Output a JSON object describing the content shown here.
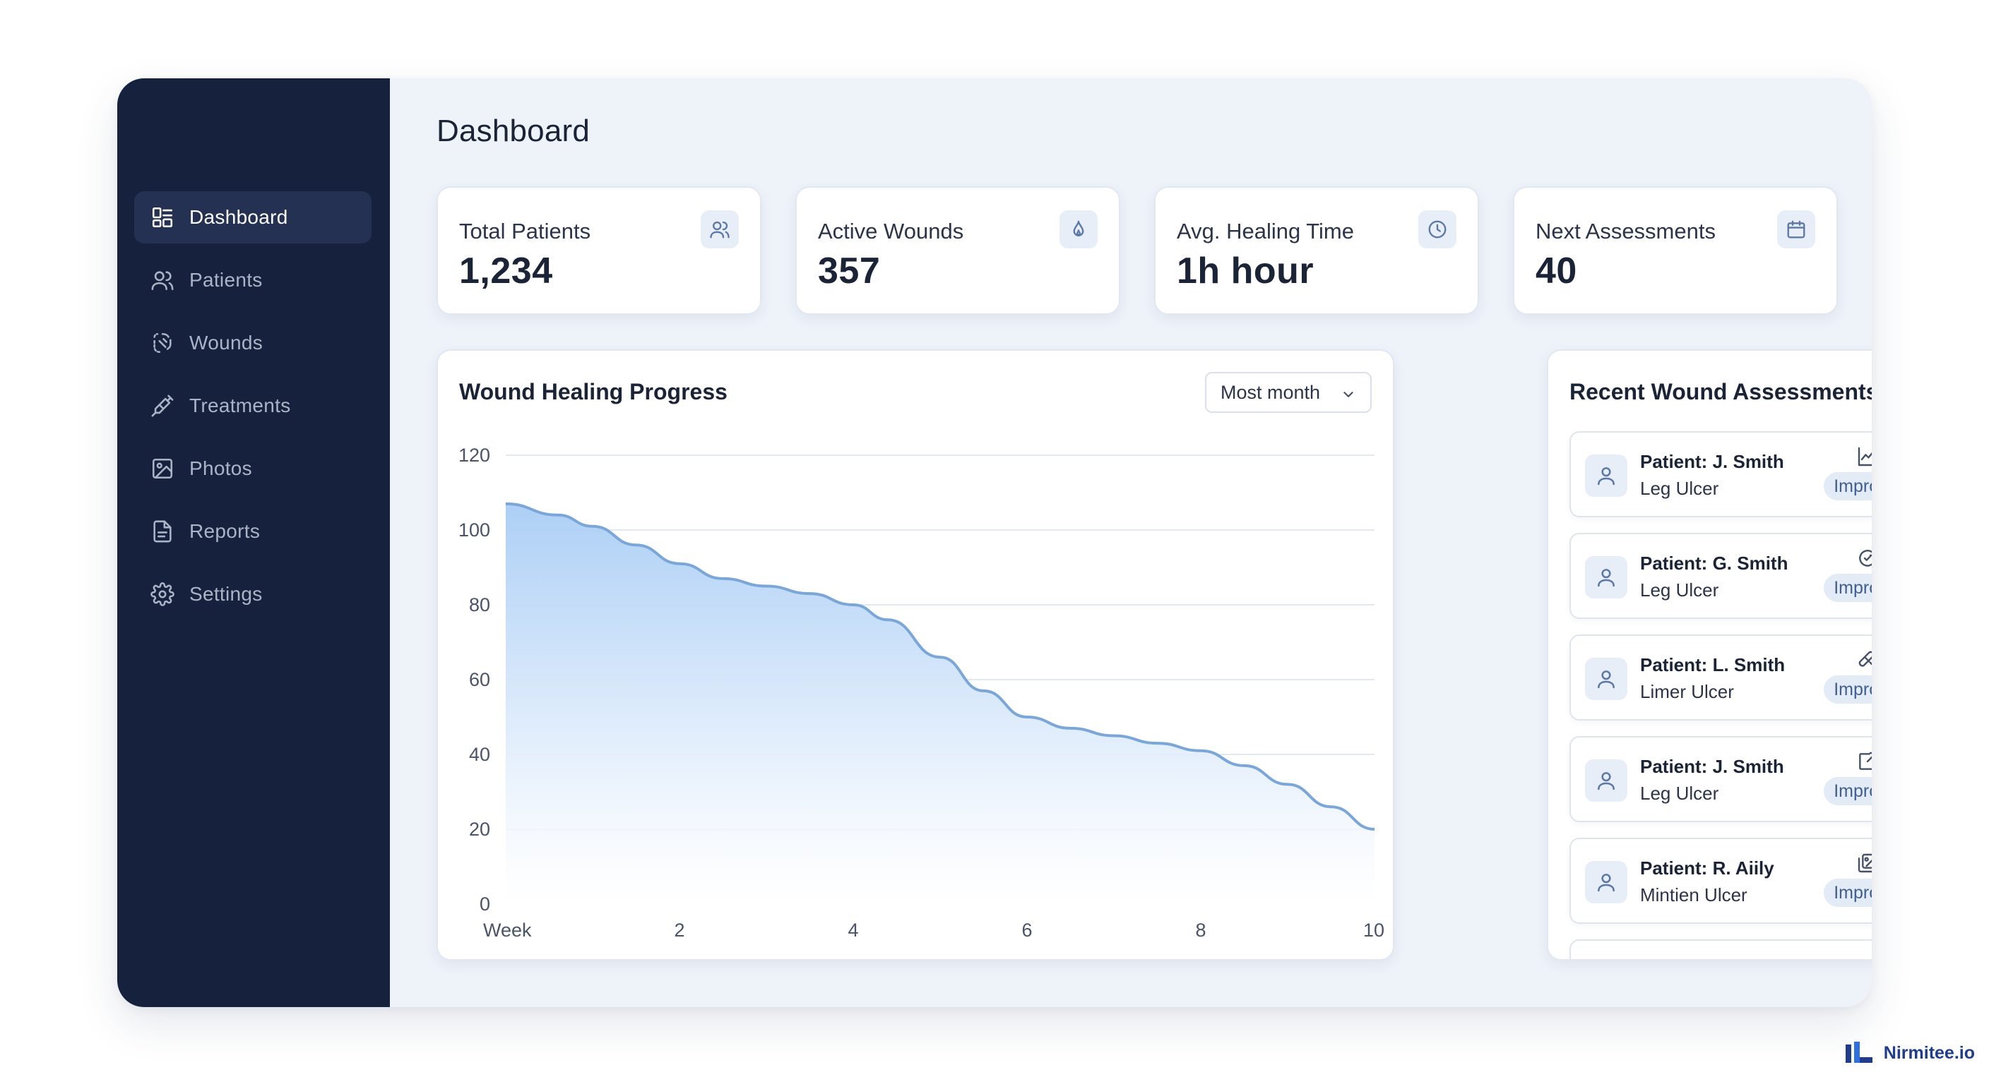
{
  "page": {
    "title": "Dashboard"
  },
  "sidebar": {
    "items": [
      {
        "label": "Dashboard",
        "icon": "dashboard-icon",
        "active": true
      },
      {
        "label": "Patients",
        "icon": "users-icon",
        "active": false
      },
      {
        "label": "Wounds",
        "icon": "bandage-icon",
        "active": false
      },
      {
        "label": "Treatments",
        "icon": "syringe-icon",
        "active": false
      },
      {
        "label": "Photos",
        "icon": "image-icon",
        "active": false
      },
      {
        "label": "Reports",
        "icon": "file-icon",
        "active": false
      },
      {
        "label": "Settings",
        "icon": "gear-icon",
        "active": false
      }
    ]
  },
  "stats": [
    {
      "label": "Total Patients",
      "value": "1,234",
      "icon": "users-icon"
    },
    {
      "label": "Active Wounds",
      "value": "357",
      "icon": "drop-icon"
    },
    {
      "label": "Avg. Healing Time",
      "value": "1h hour",
      "icon": "clock-icon"
    },
    {
      "label": "Next Assessments",
      "value": "40",
      "icon": "calendar-icon"
    }
  ],
  "chart_panel": {
    "title": "Wound Healing Progress",
    "filter": {
      "selected": "Most month"
    }
  },
  "chart_data": {
    "type": "area",
    "title": "Wound Healing Progress",
    "x_tick_labels": [
      "Week",
      "2",
      "4",
      "6",
      "8",
      "10"
    ],
    "x_ticks": [
      0,
      2,
      4,
      6,
      8,
      10
    ],
    "y_ticks": [
      0,
      20,
      40,
      60,
      80,
      100,
      120
    ],
    "xlim": [
      0,
      10
    ],
    "ylim": [
      0,
      120
    ],
    "grid": true,
    "series": [
      {
        "x": [
          0,
          0.6,
          1,
          1.5,
          2,
          2.5,
          3,
          3.5,
          4,
          4.4,
          5,
          5.5,
          6,
          6.5,
          7,
          7.5,
          8,
          8.5,
          9,
          9.5,
          10
        ],
        "y": [
          107,
          104,
          101,
          96,
          91,
          87,
          85,
          83,
          80,
          76,
          66,
          57,
          50,
          47,
          45,
          43,
          41,
          37,
          32,
          26,
          20
        ]
      }
    ],
    "colors": {
      "line": "#7aa7d8",
      "fill_top": "#a9cdf5",
      "fill_bottom": "#eef5fd"
    }
  },
  "recent": {
    "title": "Recent Wound Assessments",
    "items": [
      {
        "name": "Patient: J. Smith",
        "type": "Leg Ulcer",
        "status": "Improving",
        "icon": "trend-chart-icon"
      },
      {
        "name": "Patient: G. Smith",
        "type": "Leg Ulcer",
        "status": "Improving",
        "icon": "refresh-check-icon"
      },
      {
        "name": "Patient: L. Smith",
        "type": "Limer Ulcer",
        "status": "Improving",
        "icon": "bandage-icon"
      },
      {
        "name": "Patient: J. Smith",
        "type": "Leg Ulcer",
        "status": "Improving",
        "icon": "share-icon"
      },
      {
        "name": "Patient: R. Aiily",
        "type": "Mintien Ulcer",
        "status": "Improving",
        "icon": "gallery-icon"
      }
    ]
  },
  "brand": {
    "name": "Nirmitee.io",
    "color": "#1f3d8a"
  },
  "colors": {
    "sidebar": "#16223d",
    "sidebar_active": "#243152",
    "background": "#eef2f9",
    "accent": "#5b79a8"
  }
}
